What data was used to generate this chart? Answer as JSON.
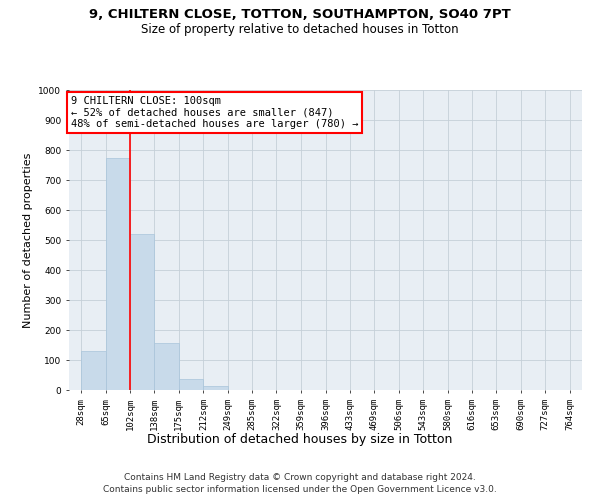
{
  "title_line1": "9, CHILTERN CLOSE, TOTTON, SOUTHAMPTON, SO40 7PT",
  "title_line2": "Size of property relative to detached houses in Totton",
  "xlabel": "Distribution of detached houses by size in Totton",
  "ylabel": "Number of detached properties",
  "bar_color": "#c8daea",
  "bar_edgecolor": "#a8c4da",
  "vline_color": "red",
  "vline_x_bin_index": 2,
  "annotation_line1": "9 CHILTERN CLOSE: 100sqm",
  "annotation_line2": "← 52% of detached houses are smaller (847)",
  "annotation_line3": "48% of semi-detached houses are larger (780) →",
  "bins": [
    28,
    65,
    102,
    138,
    175,
    212,
    249,
    285,
    322,
    359,
    396,
    433,
    469,
    506,
    543,
    580,
    616,
    653,
    690,
    727,
    764
  ],
  "counts": [
    130,
    775,
    520,
    157,
    38,
    12,
    0,
    0,
    0,
    0,
    0,
    0,
    0,
    0,
    0,
    0,
    0,
    0,
    0,
    0
  ],
  "ylim": [
    0,
    1000
  ],
  "yticks": [
    0,
    100,
    200,
    300,
    400,
    500,
    600,
    700,
    800,
    900,
    1000
  ],
  "fig_bg": "#ffffff",
  "plot_bg": "#e8eef4",
  "grid_color": "#c5cfd8",
  "title_fontsize": 9.5,
  "subtitle_fontsize": 8.5,
  "ylabel_fontsize": 8,
  "xlabel_fontsize": 9,
  "tick_fontsize": 6.5,
  "annot_fontsize": 7.5,
  "footer_fontsize": 6.5,
  "footer_line1": "Contains HM Land Registry data © Crown copyright and database right 2024.",
  "footer_line2": "Contains public sector information licensed under the Open Government Licence v3.0."
}
